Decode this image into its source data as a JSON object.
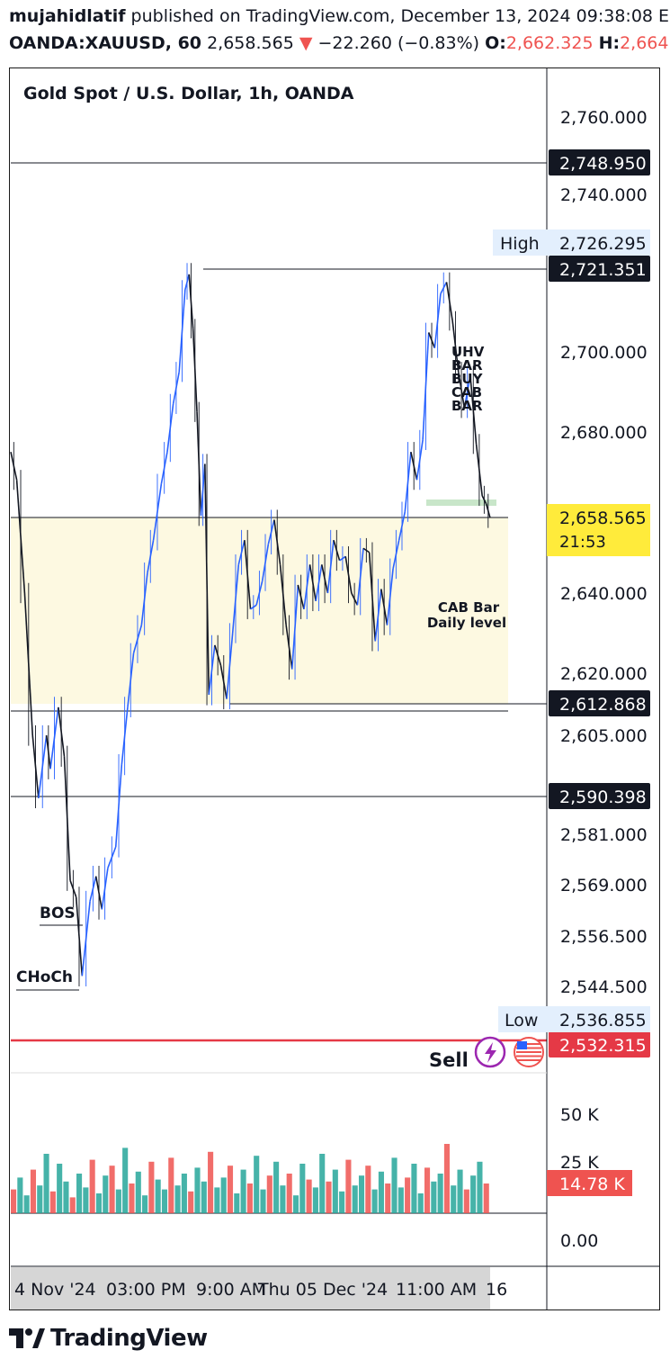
{
  "header": {
    "author": "mujahidlatif",
    "published_text": "published on TradingView.com, December 13, 2024 09:38:08 E",
    "symbol": "OANDA:XAUUSD, 60",
    "price": "2,658.565",
    "change": "−22.260 (−0.83%)",
    "o_label": "O:",
    "o_value": "2,662.325",
    "h_label": "H:",
    "h_value": "2,664"
  },
  "chart_data": {
    "type": "candlestick",
    "title": "Gold Spot / U.S. Dollar, 1h, OANDA",
    "y_ticks": [
      "2,760.000",
      "2,740.000",
      "2,700.000",
      "2,680.000",
      "2,640.000",
      "2,620.000",
      "2,605.000",
      "2,581.000",
      "2,569.000",
      "2,556.500",
      "2,544.500"
    ],
    "y_tick_values": [
      2760,
      2740,
      2700,
      2680,
      2640,
      2620,
      2605,
      2581,
      2569,
      2556.5,
      2544.5
    ],
    "price_path": [
      [
        0,
        2675
      ],
      [
        3,
        2668
      ],
      [
        7,
        2640
      ],
      [
        11,
        2605
      ],
      [
        14,
        2590
      ],
      [
        18,
        2605
      ],
      [
        20,
        2597
      ],
      [
        24,
        2612
      ],
      [
        27,
        2600
      ],
      [
        30,
        2570
      ],
      [
        33,
        2566
      ],
      [
        36,
        2547
      ],
      [
        40,
        2565
      ],
      [
        43,
        2571
      ],
      [
        46,
        2563
      ],
      [
        49,
        2573
      ],
      [
        53,
        2578
      ],
      [
        56,
        2598
      ],
      [
        59,
        2612
      ],
      [
        62,
        2625
      ],
      [
        66,
        2632
      ],
      [
        69,
        2645
      ],
      [
        72,
        2653
      ],
      [
        76,
        2667
      ],
      [
        79,
        2675
      ],
      [
        82,
        2687
      ],
      [
        85,
        2695
      ],
      [
        88,
        2716
      ],
      [
        90,
        2720
      ],
      [
        92,
        2706
      ],
      [
        94,
        2685
      ],
      [
        96,
        2659
      ],
      [
        98,
        2672
      ],
      [
        100,
        2615
      ],
      [
        103,
        2627
      ],
      [
        106,
        2622
      ],
      [
        109,
        2614
      ],
      [
        112,
        2630
      ],
      [
        115,
        2647
      ],
      [
        118,
        2653
      ],
      [
        121,
        2636
      ],
      [
        124,
        2637
      ],
      [
        127,
        2643
      ],
      [
        130,
        2652
      ],
      [
        133,
        2658
      ],
      [
        136,
        2647
      ],
      [
        139,
        2632
      ],
      [
        142,
        2621
      ],
      [
        145,
        2642
      ],
      [
        148,
        2636
      ],
      [
        151,
        2647
      ],
      [
        154,
        2638
      ],
      [
        157,
        2647
      ],
      [
        160,
        2640
      ],
      [
        163,
        2653
      ],
      [
        166,
        2648
      ],
      [
        169,
        2649
      ],
      [
        172,
        2640
      ],
      [
        175,
        2637
      ],
      [
        178,
        2651
      ],
      [
        181,
        2650
      ],
      [
        184,
        2628
      ],
      [
        187,
        2641
      ],
      [
        190,
        2632
      ],
      [
        193,
        2646
      ],
      [
        196,
        2653
      ],
      [
        199,
        2660
      ],
      [
        202,
        2675
      ],
      [
        205,
        2668
      ],
      [
        208,
        2678
      ],
      [
        211,
        2705
      ],
      [
        214,
        2701
      ],
      [
        217,
        2715
      ],
      [
        220,
        2718
      ],
      [
        223,
        2708
      ],
      [
        226,
        2695
      ],
      [
        229,
        2686
      ],
      [
        232,
        2694
      ],
      [
        235,
        2677
      ],
      [
        238,
        2664
      ],
      [
        240,
        2662
      ],
      [
        242,
        2658.5
      ]
    ],
    "volume_path": [
      12,
      18,
      9,
      22,
      14,
      30,
      11,
      25,
      16,
      8,
      20,
      13,
      27,
      10,
      19,
      24,
      12,
      33,
      15,
      21,
      9,
      26,
      17,
      12,
      28,
      14,
      20,
      11,
      23,
      16,
      31,
      13,
      18,
      24,
      10,
      22,
      15,
      29,
      12,
      19,
      26,
      14,
      20,
      9,
      25,
      17,
      13,
      30,
      16,
      22,
      11,
      27,
      14,
      19,
      24,
      12,
      21,
      15,
      28,
      13,
      18,
      25,
      10,
      23,
      16,
      20,
      35,
      14,
      22,
      12,
      19,
      26,
      15
    ],
    "volume_ticks": [
      "50 K",
      "25 K",
      "0.00"
    ],
    "volume_current": "14.78 K",
    "levels": {
      "top_line": "2,748.950",
      "high_line": "2,721.351",
      "zone_top": "2,658.565",
      "zone_bottom": "2,612.868",
      "lower_line": "2,590.398",
      "red_line": "2,532.315"
    },
    "high_label": "High",
    "high_value": "2,726.295",
    "low_label": "Low",
    "low_value": "2,536.855",
    "price_tag": "2,658.565",
    "countdown": "21:53",
    "zone_label_line1": "CAB Bar",
    "zone_label_line2": "Daily level",
    "uhv_labels": [
      "UHV",
      "BAR",
      "BUY",
      "CAB",
      "BAR"
    ],
    "bos_label": "BOS",
    "choch_label": "CHoCh",
    "sell_label": "Sell",
    "x_labels": [
      "4 Nov '24",
      "03:00 PM",
      "9:00 AM",
      "Thu 05 Dec '24",
      "11:00 AM",
      "16"
    ],
    "colors": {
      "up": "#2962ff",
      "down": "#131722",
      "zone_fill": "#fdf9e1",
      "red_line": "#e53946",
      "vol_up": "#26a69a",
      "vol_down": "#ef5350",
      "price_tag": "#ffeb3b",
      "label_bg": "#131722",
      "hl_bg": "#e3effd"
    }
  },
  "branding": {
    "logo_text": "TradingView"
  }
}
